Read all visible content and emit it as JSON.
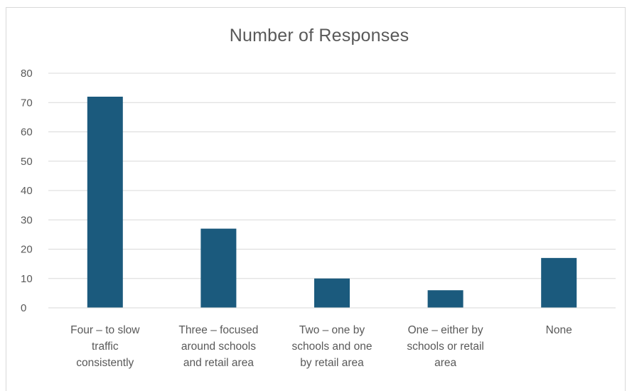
{
  "chart_data": {
    "type": "bar",
    "title": "Number of Responses",
    "xlabel": "",
    "ylabel": "",
    "categories": [
      [
        "Four – to slow",
        "traffic",
        "consistently"
      ],
      [
        "Three – focused",
        "around schools",
        "and retail area"
      ],
      [
        "Two – one by",
        "schools and one",
        "by retail area"
      ],
      [
        "One – either by",
        "schools or retail",
        "area"
      ],
      [
        "None"
      ]
    ],
    "values": [
      72,
      27,
      10,
      6,
      17
    ],
    "ylim": [
      0,
      80
    ],
    "yticks": [
      "0",
      "10",
      "20",
      "30",
      "40",
      "50",
      "60",
      "70",
      "80"
    ],
    "grid": true,
    "legend": "none",
    "bar_color": "#1b5a7d",
    "grid_color": "#d9d9d9"
  }
}
